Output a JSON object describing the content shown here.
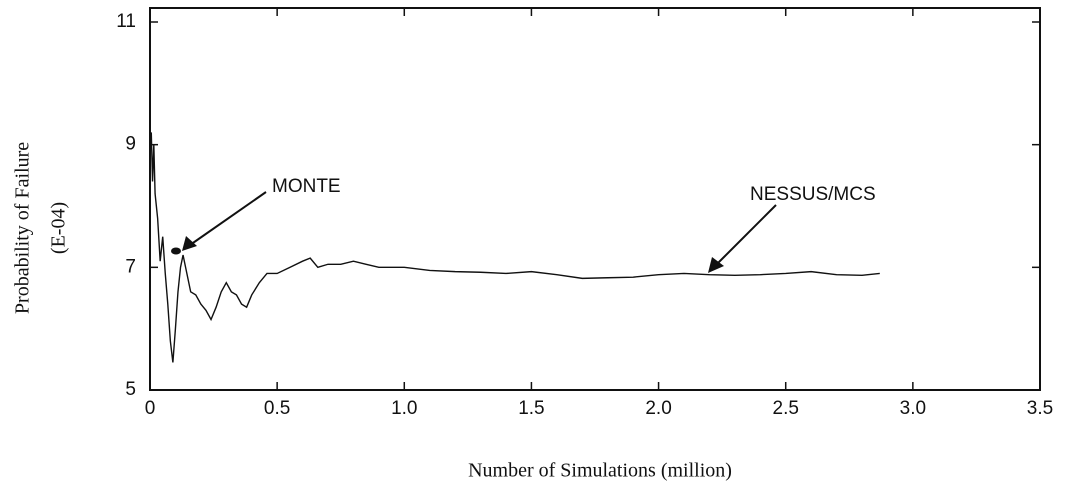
{
  "chart_data": {
    "type": "line",
    "xlabel": "Number of Simulations (million)",
    "ylabel": "Probability of Failure",
    "ylabel_unit": "(E-04)",
    "annotations": [
      "MONTE",
      "NESSUS/MCS"
    ],
    "x": [
      0.005,
      0.01,
      0.015,
      0.02,
      0.03,
      0.04,
      0.05,
      0.06,
      0.07,
      0.08,
      0.09,
      0.1,
      0.11,
      0.12,
      0.13,
      0.14,
      0.16,
      0.18,
      0.2,
      0.22,
      0.24,
      0.26,
      0.28,
      0.3,
      0.32,
      0.34,
      0.36,
      0.38,
      0.4,
      0.43,
      0.46,
      0.5,
      0.55,
      0.6,
      0.63,
      0.66,
      0.7,
      0.75,
      0.8,
      0.85,
      0.9,
      1.0,
      1.1,
      1.2,
      1.3,
      1.4,
      1.5,
      1.6,
      1.7,
      1.8,
      1.9,
      2.0,
      2.1,
      2.2,
      2.3,
      2.4,
      2.5,
      2.6,
      2.7,
      2.8,
      2.87
    ],
    "series": [
      {
        "name": "NESSUS/MCS",
        "color": "#111111",
        "values": [
          9.2,
          8.4,
          9.0,
          8.2,
          7.8,
          7.1,
          7.5,
          6.9,
          6.4,
          5.8,
          5.45,
          6.0,
          6.6,
          7.0,
          7.2,
          7.0,
          6.6,
          6.55,
          6.4,
          6.3,
          6.15,
          6.35,
          6.6,
          6.75,
          6.6,
          6.55,
          6.4,
          6.35,
          6.55,
          6.75,
          6.9,
          6.9,
          7.0,
          7.1,
          7.15,
          7.0,
          7.05,
          7.05,
          7.1,
          7.05,
          7.0,
          7.0,
          6.95,
          6.93,
          6.92,
          6.9,
          6.93,
          6.88,
          6.82,
          6.83,
          6.84,
          6.88,
          6.9,
          6.88,
          6.87,
          6.88,
          6.9,
          6.93,
          6.88,
          6.87,
          6.9
        ]
      }
    ],
    "xlim": [
      0,
      3.5
    ],
    "xticks": [
      0,
      0.5,
      {
        "value": 1,
        "label": "1.0"
      },
      1.5,
      {
        "value": 2,
        "label": "2.0"
      },
      2.5,
      {
        "value": 3,
        "label": "3.0"
      },
      3.5
    ],
    "ylim": [
      5,
      11
    ],
    "yticks": [
      5,
      7,
      9,
      11
    ]
  }
}
